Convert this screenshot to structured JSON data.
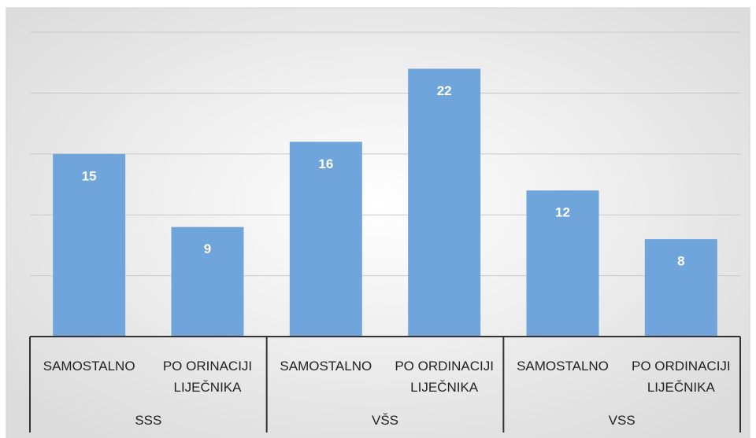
{
  "chart_data": {
    "type": "bar",
    "categories": [
      "SAMOSTALNO",
      "PO ORINACIJI LIJEČNIKA",
      "SAMOSTALNO",
      "PO ORDINACIJI LIJEČNIKA",
      "SAMOSTALNO",
      "PO ORDINACIJI LIJEČNIKA"
    ],
    "groups": [
      "SSS",
      "VŠS",
      "VSS"
    ],
    "values": [
      15,
      9,
      16,
      22,
      12,
      8
    ],
    "color": "#6fa5db",
    "ylim": [
      0,
      25
    ],
    "yticks": [
      5,
      10,
      15,
      20,
      25
    ],
    "grid": true
  }
}
